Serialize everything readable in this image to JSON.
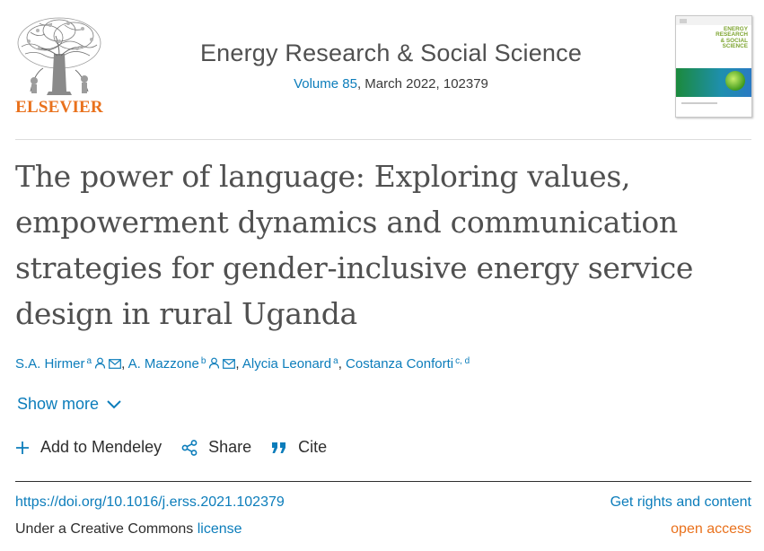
{
  "publisher": {
    "wordmark": "ELSEVIER",
    "logo_icon": "tree-of-knowledge-logo",
    "brand_color": "#e9711c"
  },
  "journal": {
    "title": "Energy Research & Social Science",
    "volume_label": "Volume 85",
    "issue_rest": ", March 2022, 102379",
    "cover_text_line1": "ENERGY",
    "cover_text_line2": "RESEARCH",
    "cover_text_line3": "& SOCIAL",
    "cover_text_line4": "SCIENCE"
  },
  "article": {
    "title": "The power of language: Exploring values, empowerment dynamics and communication strategies for gender-inclusive energy service design in rural Uganda"
  },
  "authors": [
    {
      "name": "S.A. Hirmer",
      "sup": "a",
      "person_icon": true,
      "mail_icon": true,
      "separator": ", "
    },
    {
      "name": "A. Mazzone",
      "sup": "b",
      "person_icon": true,
      "mail_icon": true,
      "separator": ", "
    },
    {
      "name": "Alycia Leonard",
      "sup": "a",
      "person_icon": false,
      "mail_icon": false,
      "separator": ", "
    },
    {
      "name": "Costanza Conforti",
      "sup": "c, d",
      "person_icon": false,
      "mail_icon": false,
      "separator": ""
    }
  ],
  "show_more": {
    "label": "Show more",
    "icon": "chevron-down-icon"
  },
  "actions": {
    "mendeley_label": "Add to Mendeley",
    "share_label": "Share",
    "cite_label": "Cite"
  },
  "links": {
    "doi": "https://doi.org/10.1016/j.erss.2021.102379",
    "rights": "Get rights and content",
    "license_prefix": "Under a Creative Commons ",
    "license_link": "license",
    "open_access": "open access"
  },
  "colors": {
    "link": "#0c7dbb",
    "accent": "#e9711c",
    "text": "#2e2e2e",
    "title": "#505050"
  }
}
